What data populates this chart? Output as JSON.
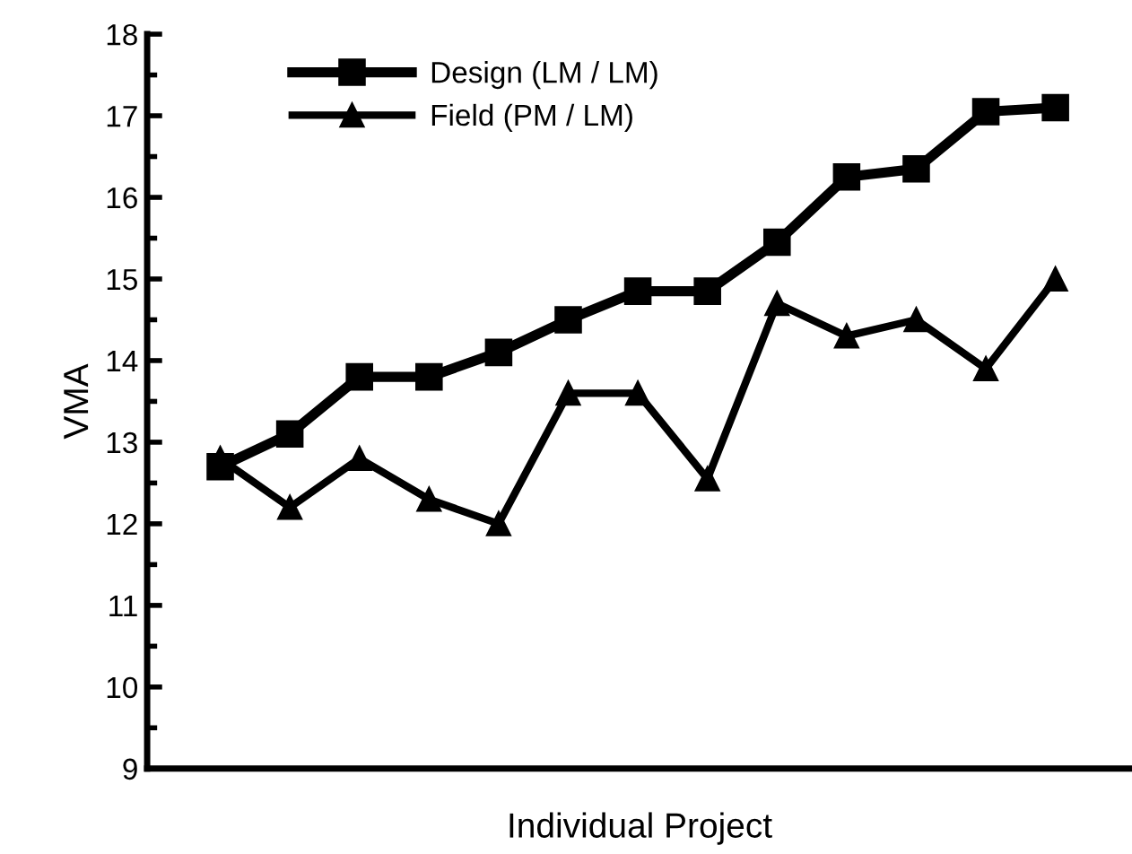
{
  "chart_data": {
    "type": "line",
    "xlabel": "Individual Project",
    "ylabel": "VMA",
    "categories": [
      null,
      null,
      null,
      null,
      null,
      null,
      null,
      null,
      null,
      null,
      null,
      null,
      null
    ],
    "series": [
      {
        "name": "Design (LM / LM)",
        "color": "#000000",
        "marker": "square",
        "values": [
          12.7,
          13.1,
          13.8,
          13.8,
          14.1,
          14.5,
          14.85,
          14.85,
          15.45,
          16.25,
          16.35,
          17.05,
          17.1
        ]
      },
      {
        "name": "Field (PM / LM)",
        "color": "#000000",
        "marker": "triangle",
        "values": [
          12.8,
          12.2,
          12.8,
          12.3,
          12.0,
          13.6,
          13.6,
          12.55,
          14.7,
          14.3,
          14.5,
          13.9,
          15.0
        ]
      }
    ],
    "ylim": [
      9,
      18
    ],
    "yticks": [
      9,
      {
        "value": 9.5,
        "label": null
      },
      10,
      {
        "value": 10.5,
        "label": null
      },
      11,
      {
        "value": 11.5,
        "label": null
      },
      12,
      {
        "value": 12.5,
        "label": null
      },
      13,
      {
        "value": 13.5,
        "label": null
      },
      14,
      {
        "value": 14.5,
        "label": null
      },
      15,
      {
        "value": 15.5,
        "label": null
      },
      16,
      {
        "value": 16.5,
        "label": null
      },
      17,
      {
        "value": 17.5,
        "label": null
      },
      18
    ],
    "grid": false,
    "legend": "top left",
    "line_style": "solid"
  }
}
